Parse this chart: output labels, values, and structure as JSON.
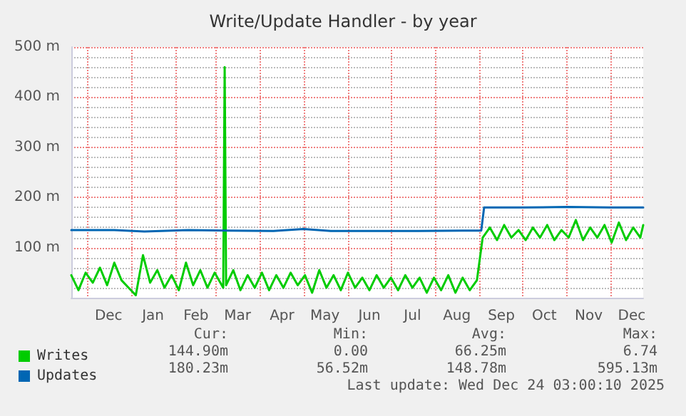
{
  "chart_data": {
    "type": "line",
    "title": "Write/Update Handler - by year",
    "xlim": [
      "2024-11-20",
      "2025-12-24"
    ],
    "xticks": [
      {
        "value": "2024-12-01",
        "label": null
      },
      {
        "value": "2024-12-16",
        "label": "Dec"
      },
      {
        "value": "2025-01-01",
        "label": null
      },
      {
        "value": "2025-01-16",
        "label": "Jan"
      },
      {
        "value": "2025-02-01",
        "label": null
      },
      {
        "value": "2025-02-15",
        "label": "Feb"
      },
      {
        "value": "2025-03-01",
        "label": null
      },
      {
        "value": "2025-03-16",
        "label": "Mar"
      },
      {
        "value": "2025-04-01",
        "label": null
      },
      {
        "value": "2025-04-16",
        "label": "Apr"
      },
      {
        "value": "2025-05-01",
        "label": null
      },
      {
        "value": "2025-05-16",
        "label": "May"
      },
      {
        "value": "2025-06-01",
        "label": null
      },
      {
        "value": "2025-06-16",
        "label": "Jun"
      },
      {
        "value": "2025-07-01",
        "label": null
      },
      {
        "value": "2025-07-16",
        "label": "Jul"
      },
      {
        "value": "2025-08-01",
        "label": null
      },
      {
        "value": "2025-08-16",
        "label": "Aug"
      },
      {
        "value": "2025-09-01",
        "label": null
      },
      {
        "value": "2025-09-16",
        "label": "Sep"
      },
      {
        "value": "2025-10-01",
        "label": null
      },
      {
        "value": "2025-10-16",
        "label": "Oct"
      },
      {
        "value": "2025-11-01",
        "label": null
      },
      {
        "value": "2025-11-16",
        "label": "Nov"
      },
      {
        "value": "2025-12-01",
        "label": null
      },
      {
        "value": "2025-12-16",
        "label": "Dec"
      }
    ],
    "ylim": [
      0,
      500
    ],
    "yticks": [
      {
        "value": 20,
        "label": null
      },
      {
        "value": 40,
        "label": null
      },
      {
        "value": 60,
        "label": null
      },
      {
        "value": 80,
        "label": null
      },
      {
        "value": 100,
        "label": "100 m"
      },
      {
        "value": 120,
        "label": null
      },
      {
        "value": 140,
        "label": null
      },
      {
        "value": 160,
        "label": null
      },
      {
        "value": 180,
        "label": null
      },
      {
        "value": 200,
        "label": "200 m"
      },
      {
        "value": 220,
        "label": null
      },
      {
        "value": 240,
        "label": null
      },
      {
        "value": 260,
        "label": null
      },
      {
        "value": 280,
        "label": null
      },
      {
        "value": 300,
        "label": "300 m"
      },
      {
        "value": 320,
        "label": null
      },
      {
        "value": 340,
        "label": null
      },
      {
        "value": 360,
        "label": null
      },
      {
        "value": 380,
        "label": null
      },
      {
        "value": 400,
        "label": "400 m"
      },
      {
        "value": 420,
        "label": null
      },
      {
        "value": 440,
        "label": null
      },
      {
        "value": 460,
        "label": null
      },
      {
        "value": 480,
        "label": null
      },
      {
        "value": 500,
        "label": "500 m"
      }
    ],
    "grid": true,
    "legend": "bottom left",
    "line_style": "solid",
    "marker": "none",
    "series": [
      {
        "name": "Writes",
        "color": "#00cc00",
        "x": [
          "2024-11-20",
          "2024-11-25",
          "2024-11-30",
          "2024-12-05",
          "2024-12-10",
          "2024-12-15",
          "2024-12-20",
          "2024-12-25",
          "2024-12-30",
          "2025-01-04",
          "2025-01-09",
          "2025-01-14",
          "2025-01-19",
          "2025-01-24",
          "2025-01-29",
          "2025-02-03",
          "2025-02-08",
          "2025-02-13",
          "2025-02-18",
          "2025-02-23",
          "2025-02-28",
          "2025-03-06",
          "2025-03-07",
          "2025-03-08",
          "2025-03-13",
          "2025-03-18",
          "2025-03-23",
          "2025-03-28",
          "2025-04-02",
          "2025-04-07",
          "2025-04-12",
          "2025-04-17",
          "2025-04-22",
          "2025-04-27",
          "2025-05-02",
          "2025-05-07",
          "2025-05-12",
          "2025-05-17",
          "2025-05-22",
          "2025-05-27",
          "2025-06-01",
          "2025-06-06",
          "2025-06-11",
          "2025-06-16",
          "2025-06-21",
          "2025-06-26",
          "2025-07-01",
          "2025-07-06",
          "2025-07-11",
          "2025-07-16",
          "2025-07-21",
          "2025-07-26",
          "2025-07-31",
          "2025-08-05",
          "2025-08-10",
          "2025-08-15",
          "2025-08-20",
          "2025-08-25",
          "2025-08-30",
          "2025-09-03",
          "2025-09-08",
          "2025-09-13",
          "2025-09-18",
          "2025-09-23",
          "2025-09-28",
          "2025-10-03",
          "2025-10-08",
          "2025-10-13",
          "2025-10-18",
          "2025-10-23",
          "2025-10-28",
          "2025-11-02",
          "2025-11-07",
          "2025-11-12",
          "2025-11-17",
          "2025-11-22",
          "2025-11-27",
          "2025-12-02",
          "2025-12-07",
          "2025-12-12",
          "2025-12-17",
          "2025-12-22",
          "2025-12-24"
        ],
        "values": [
          45,
          15,
          50,
          30,
          60,
          25,
          70,
          35,
          20,
          5,
          85,
          30,
          55,
          20,
          45,
          15,
          70,
          25,
          55,
          20,
          50,
          20,
          460,
          25,
          55,
          15,
          45,
          20,
          50,
          15,
          45,
          20,
          50,
          25,
          45,
          10,
          55,
          20,
          45,
          15,
          50,
          20,
          40,
          15,
          45,
          20,
          40,
          15,
          45,
          20,
          40,
          10,
          40,
          15,
          45,
          10,
          40,
          15,
          35,
          120,
          140,
          115,
          145,
          120,
          135,
          115,
          140,
          120,
          145,
          115,
          135,
          120,
          155,
          115,
          140,
          120,
          145,
          110,
          150,
          115,
          140,
          120,
          145
        ]
      },
      {
        "name": "Updates",
        "color": "#0066b3",
        "x": [
          "2024-11-20",
          "2024-12-20",
          "2025-01-10",
          "2025-02-10",
          "2025-03-10",
          "2025-04-10",
          "2025-05-01",
          "2025-05-20",
          "2025-06-20",
          "2025-07-20",
          "2025-08-20",
          "2025-09-02",
          "2025-09-04",
          "2025-10-01",
          "2025-11-01",
          "2025-12-01",
          "2025-12-24"
        ],
        "values": [
          135,
          135,
          132,
          135,
          134,
          133,
          137,
          133,
          133,
          133,
          134,
          134,
          180,
          180,
          181,
          180,
          180
        ]
      }
    ],
    "annotations": [
      "Cur:",
      "Min:",
      "Avg:",
      "Max:",
      "144.90m",
      "0.00",
      "66.25m",
      "6.74",
      "180.23m",
      "56.52m",
      "148.78m",
      "595.13m",
      "Last update: Wed Dec 24 03:00:10 2025"
    ]
  }
}
